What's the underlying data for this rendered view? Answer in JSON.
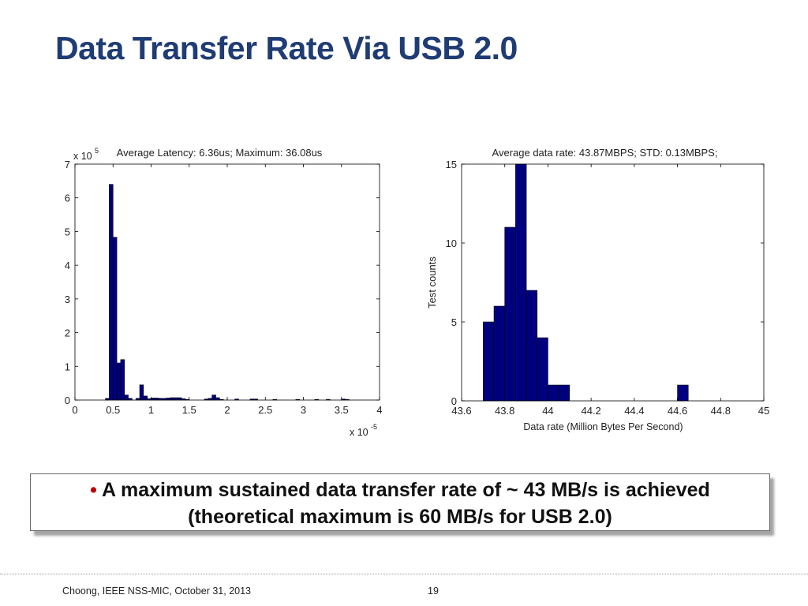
{
  "slide": {
    "title": "Data Transfer Rate Via USB 2.0",
    "callout_bullet": "•",
    "callout_line1": "A maximum sustained data transfer rate of ~ 43 MB/s  is achieved",
    "callout_line2": "(theoretical maximum is 60 MB/s for USB 2.0)",
    "footer_left": "Choong, IEEE NSS-MIC, October 31, 2013",
    "page_number": "19",
    "colors": {
      "title": "#1f3c74",
      "bar": "#00007f",
      "bullet": "#c00000"
    }
  },
  "chart_data": [
    {
      "type": "bar",
      "title": "Average Latency: 6.36us; Maximum: 36.08us",
      "xlabel": "",
      "ylabel": "",
      "x_exponent_label": "x 10",
      "x_exponent": "-5",
      "y_exponent_label": "x 10",
      "y_exponent": "5",
      "xlim": [
        0,
        4
      ],
      "ylim": [
        0,
        7
      ],
      "xticks": [
        0,
        0.5,
        1,
        1.5,
        2,
        2.5,
        3,
        3.5,
        4
      ],
      "xtick_labels": [
        "0",
        "0.5",
        "1",
        "1.5",
        "2",
        "2.5",
        "3",
        "3.5",
        "4"
      ],
      "yticks": [
        0,
        1,
        2,
        3,
        4,
        5,
        6,
        7
      ],
      "ytick_labels": [
        "0",
        "1",
        "2",
        "3",
        "4",
        "5",
        "6",
        "7"
      ],
      "grid": false,
      "bin_width": 0.05,
      "bins": [
        {
          "x": 0.425,
          "value": 0.05
        },
        {
          "x": 0.475,
          "value": 6.4
        },
        {
          "x": 0.525,
          "value": 4.83
        },
        {
          "x": 0.575,
          "value": 1.1
        },
        {
          "x": 0.625,
          "value": 1.2
        },
        {
          "x": 0.675,
          "value": 0.15
        },
        {
          "x": 0.725,
          "value": 0.05
        },
        {
          "x": 0.825,
          "value": 0.05
        },
        {
          "x": 0.875,
          "value": 0.45
        },
        {
          "x": 0.925,
          "value": 0.12
        },
        {
          "x": 0.975,
          "value": 0.04
        },
        {
          "x": 1.025,
          "value": 0.06
        },
        {
          "x": 1.075,
          "value": 0.06
        },
        {
          "x": 1.125,
          "value": 0.05
        },
        {
          "x": 1.175,
          "value": 0.05
        },
        {
          "x": 1.225,
          "value": 0.06
        },
        {
          "x": 1.275,
          "value": 0.07
        },
        {
          "x": 1.325,
          "value": 0.07
        },
        {
          "x": 1.375,
          "value": 0.07
        },
        {
          "x": 1.425,
          "value": 0.04
        },
        {
          "x": 1.475,
          "value": 0.02
        },
        {
          "x": 1.725,
          "value": 0.03
        },
        {
          "x": 1.775,
          "value": 0.05
        },
        {
          "x": 1.825,
          "value": 0.15
        },
        {
          "x": 1.875,
          "value": 0.07
        },
        {
          "x": 1.925,
          "value": 0.02
        },
        {
          "x": 2.125,
          "value": 0.03
        },
        {
          "x": 2.325,
          "value": 0.03
        },
        {
          "x": 2.375,
          "value": 0.03
        },
        {
          "x": 2.625,
          "value": 0.02
        },
        {
          "x": 2.925,
          "value": 0.02
        },
        {
          "x": 3.175,
          "value": 0.02
        },
        {
          "x": 3.325,
          "value": 0.02
        },
        {
          "x": 3.525,
          "value": 0.03
        },
        {
          "x": 3.575,
          "value": 0.02
        }
      ]
    },
    {
      "type": "bar",
      "title": "Average data rate: 43.87MBPS; STD: 0.13MBPS;",
      "xlabel": "Data rate (Million Bytes Per Second)",
      "ylabel": "Test counts",
      "xlim": [
        43.6,
        45
      ],
      "ylim": [
        0,
        15
      ],
      "xticks": [
        43.6,
        43.8,
        44,
        44.2,
        44.4,
        44.6,
        44.8,
        45
      ],
      "xtick_labels": [
        "43.6",
        "43.8",
        "44",
        "44.2",
        "44.4",
        "44.6",
        "44.8",
        "45"
      ],
      "yticks": [
        0,
        5,
        10,
        15
      ],
      "ytick_labels": [
        "0",
        "5",
        "10",
        "15"
      ],
      "grid": false,
      "bin_width": 0.05,
      "bins": [
        {
          "x": 43.725,
          "value": 5
        },
        {
          "x": 43.775,
          "value": 6
        },
        {
          "x": 43.825,
          "value": 11
        },
        {
          "x": 43.875,
          "value": 15
        },
        {
          "x": 43.925,
          "value": 7
        },
        {
          "x": 43.975,
          "value": 4
        },
        {
          "x": 44.025,
          "value": 1
        },
        {
          "x": 44.075,
          "value": 1
        },
        {
          "x": 44.625,
          "value": 1
        }
      ]
    }
  ]
}
